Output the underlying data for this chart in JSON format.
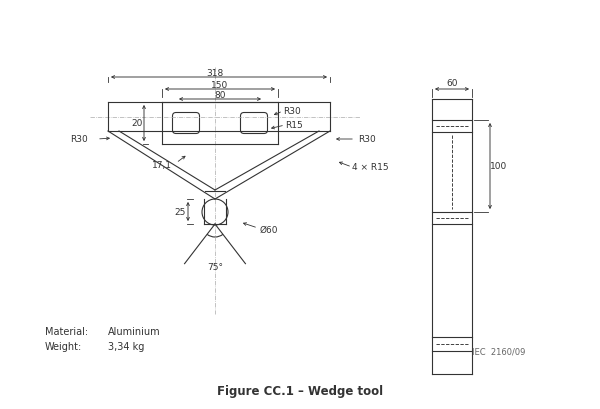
{
  "bg_color": "#ffffff",
  "line_color": "#333333",
  "title": "Figure CC.1 – Wedge tool",
  "material_label": "Material:",
  "material_value": "Aluminium",
  "weight_label": "Weight:",
  "weight_value": "3,34 kg",
  "iec_label": "IEC  2160/09",
  "dims": {
    "d318": "318",
    "d150": "150",
    "d80": "80",
    "d20": "20",
    "R30_top": "R30",
    "R15_top": "R15",
    "R30_left": "R30",
    "R30_right": "R30",
    "d100": "100",
    "4xR15": "4 × R15",
    "d17_1": "17,1",
    "d25": "25",
    "phi60": "Ø60",
    "d75": "75°",
    "d60_side": "60"
  }
}
